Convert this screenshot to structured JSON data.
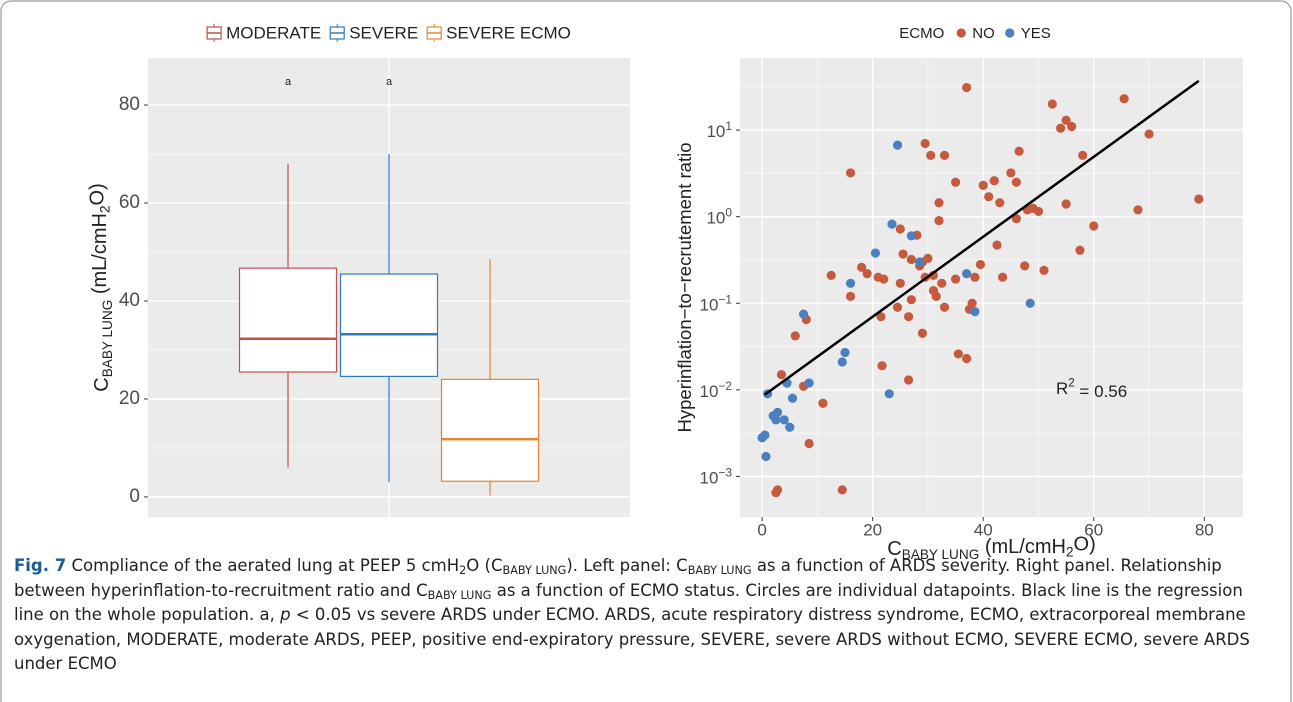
{
  "chart_data": [
    {
      "type": "box",
      "y_label": {
        "segments": [
          {
            "text": "C"
          },
          {
            "text": "BABY LUNG",
            "sub": true
          },
          {
            "text": " (mL/cmH"
          },
          {
            "text": "2",
            "sub": true
          },
          {
            "text": "O)"
          }
        ]
      },
      "ylim": [
        -4.1,
        89.6
      ],
      "yticks": [
        0,
        20,
        40,
        60,
        80
      ],
      "grid": true,
      "legend_position": "top",
      "series": [
        {
          "name": "MODERATE",
          "color": "#c0504d",
          "whisker_low": 6,
          "q1": 25.5,
          "median": 32.3,
          "q3": 46.7,
          "whisker_high": 68,
          "annotation": "a"
        },
        {
          "name": "SEVERE",
          "color": "#2f7bbf",
          "whisker_low": 3,
          "q1": 24.6,
          "median": 33.2,
          "q3": 45.5,
          "whisker_high": 70,
          "annotation": "a"
        },
        {
          "name": "SEVERE ECMO",
          "color": "#e8852f",
          "whisker_low": 0.3,
          "q1": 3.2,
          "median": 11.8,
          "q3": 24,
          "whisker_high": 48.5
        }
      ]
    },
    {
      "type": "scatter",
      "x_label": {
        "segments": [
          {
            "text": "C"
          },
          {
            "text": "BABY LUNG",
            "sub": true
          },
          {
            "text": " (mL/cmH"
          },
          {
            "text": "2",
            "sub": true
          },
          {
            "text": "O)"
          }
        ]
      },
      "y_label": "Hyperinflation−to−recrutement ratio",
      "xlim": [
        -4,
        87
      ],
      "ylim": [
        0.00034,
        68
      ],
      "log_y": true,
      "xticks": [
        0,
        20,
        40,
        60,
        80
      ],
      "yticks": [
        {
          "value": 0.001,
          "label": "10",
          "exponent": "−3"
        },
        {
          "value": 0.01,
          "label": "10",
          "exponent": "−2"
        },
        {
          "value": 0.1,
          "label": "10",
          "exponent": "−1"
        },
        {
          "value": 1,
          "label": "10",
          "exponent": "0"
        },
        {
          "value": 10,
          "label": "10",
          "exponent": "1"
        }
      ],
      "grid": true,
      "legend_title": "ECMO",
      "legend_position": "top",
      "series": [
        {
          "name": "NO",
          "color": "#c65a3d",
          "x": [
            2.5,
            2.8,
            3.5,
            7.5,
            8.5,
            6,
            8,
            11,
            12.5,
            14.5,
            16,
            16,
            18,
            19,
            21,
            21.5,
            21.7,
            22,
            24.5,
            25,
            25,
            25.5,
            26.5,
            26.5,
            27,
            27,
            28,
            28.5,
            29,
            29,
            29.5,
            29.5,
            30,
            30.5,
            31,
            31,
            31.5,
            32,
            32,
            32.5,
            33,
            33,
            35,
            35,
            35.5,
            37,
            37,
            37.5,
            38,
            38.5,
            39.5,
            40,
            41,
            42,
            42.5,
            43,
            43.5,
            45,
            46,
            46.5,
            46,
            47.5,
            48,
            49,
            50,
            51,
            52.5,
            54,
            55,
            55,
            56,
            57.5,
            58,
            60,
            65.5,
            68,
            70,
            79
          ],
          "values": [
            0.00065,
            0.0007,
            0.015,
            0.011,
            0.0024,
            0.042,
            0.065,
            0.007,
            0.21,
            0.0007,
            3.2,
            0.12,
            0.26,
            0.22,
            0.2,
            0.07,
            0.019,
            0.19,
            0.09,
            0.17,
            0.72,
            0.37,
            0.07,
            0.013,
            0.32,
            0.11,
            0.61,
            0.27,
            0.045,
            0.3,
            7,
            0.2,
            0.33,
            5.1,
            0.14,
            0.21,
            0.12,
            0.9,
            1.45,
            0.17,
            0.09,
            5.1,
            2.5,
            0.19,
            0.026,
            31,
            0.023,
            0.085,
            0.1,
            0.2,
            0.28,
            2.3,
            1.7,
            2.6,
            0.47,
            1.45,
            0.2,
            3.2,
            2.5,
            5.7,
            0.95,
            0.27,
            1.2,
            1.25,
            1.15,
            0.24,
            20,
            10.5,
            13,
            1.4,
            11,
            0.41,
            5.1,
            0.78,
            23,
            1.2,
            9,
            1.6
          ]
        },
        {
          "name": "YES",
          "color": "#4a7fc0",
          "x": [
            0,
            0.5,
            0.7,
            1,
            2,
            2.5,
            2.8,
            4,
            4.5,
            5,
            5.5,
            7.5,
            8.5,
            14.5,
            15,
            16,
            20.5,
            23,
            23.5,
            24.5,
            27,
            28.5,
            37,
            38.5,
            48.5
          ],
          "values": [
            0.0028,
            0.003,
            0.0017,
            0.009,
            0.005,
            0.0045,
            0.0055,
            0.0045,
            0.012,
            0.0037,
            0.008,
            0.075,
            0.012,
            0.021,
            0.027,
            0.17,
            0.38,
            0.009,
            0.82,
            6.7,
            0.6,
            0.3,
            0.22,
            0.08,
            0.1
          ]
        }
      ],
      "regression": {
        "color": "#000000",
        "x": [
          0.5,
          79
        ],
        "values": [
          0.0088,
          37
        ]
      },
      "annotation": {
        "segments": [
          {
            "text": "R"
          },
          {
            "text": "2",
            "sup": true
          },
          {
            "text": " = 0.56"
          }
        ]
      }
    }
  ],
  "caption": {
    "segments": [
      {
        "text": "Fig. 7",
        "bold": true
      },
      {
        "text": "  Compliance of the aerated lung at PEEP 5 cmH"
      },
      {
        "text": "2",
        "sub": true
      },
      {
        "text": "O (C"
      },
      {
        "text": "BABY LUNG",
        "sub": true
      },
      {
        "text": "). Left panel: C"
      },
      {
        "text": "BABY LUNG",
        "sub": true
      },
      {
        "text": " as a function of ARDS severity. Right panel. Relationship between hyperinflation-to-recruitment ratio and C"
      },
      {
        "text": "BABY LUNG",
        "sub": true
      },
      {
        "text": " as a function of ECMO status. Circles are individual datapoints. Black line is the regression line on the whole population. a, "
      },
      {
        "text": "p",
        "italic": true
      },
      {
        "text": " < 0.05 vs severe ARDS under ECMO. ARDS, acute respiratory distress syndrome, ECMO, extracorporeal membrane oxygenation, MODERATE, moderate ARDS, PEEP, positive end-expiratory pressure, SEVERE, severe ARDS without ECMO, SEVERE ECMO, severe ARDS under ECMO"
      }
    ]
  }
}
